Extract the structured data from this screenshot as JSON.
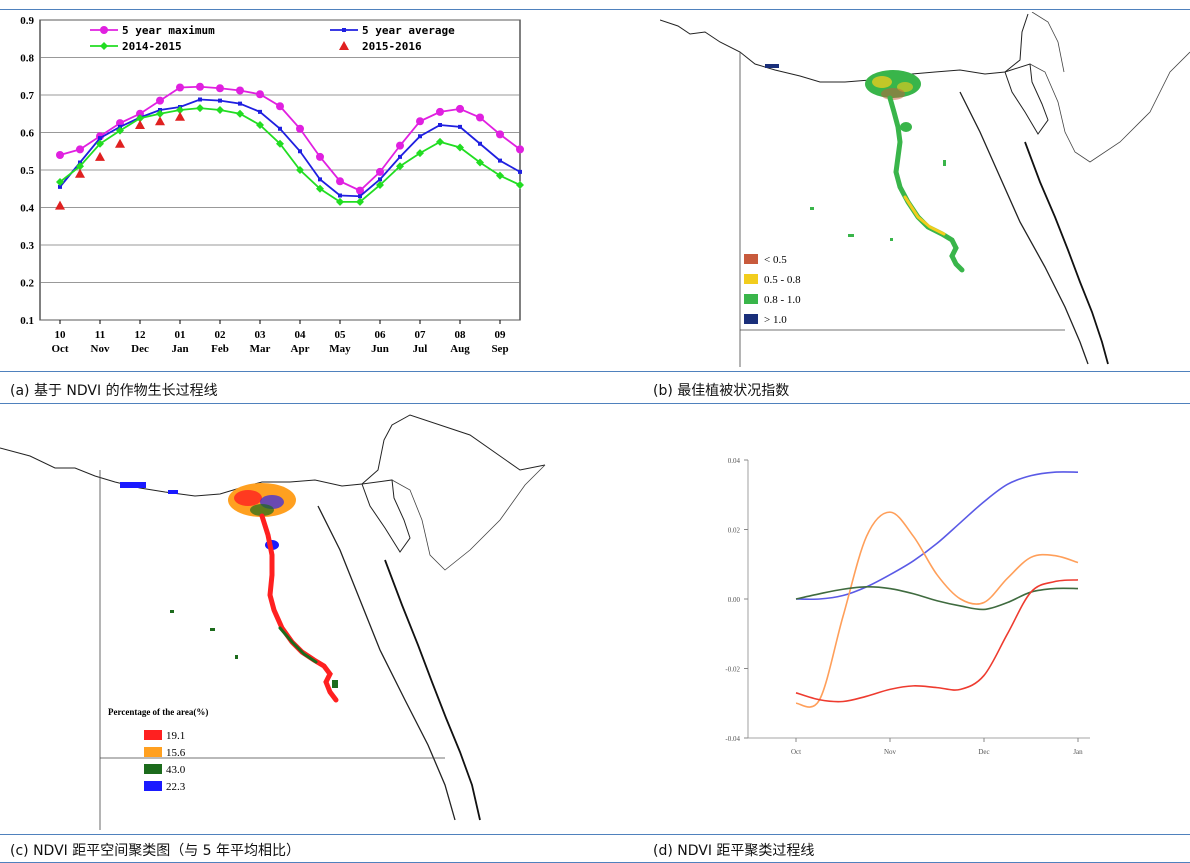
{
  "captions": {
    "a": "(a)  基于 NDVI 的作物生长过程线",
    "b": "(b)  最佳植被状况指数",
    "c": "(c) NDVI 距平空间聚类图（与 5 年平均相比）",
    "d": "(d) NDVI 距平聚类过程线"
  },
  "colors": {
    "rule": "#4f81bd",
    "max": "#e020e0",
    "avg": "#1f1fe0",
    "y1415": "#22dd22",
    "y1516": "#e02020"
  },
  "chart_data": [
    {
      "type": "line",
      "id": "a",
      "categories": [
        "10",
        "11",
        "12",
        "01",
        "02",
        "03",
        "04",
        "05",
        "06",
        "07",
        "08",
        "09"
      ],
      "category_months": [
        "Oct",
        "Nov",
        "Dec",
        "Jan",
        "Feb",
        "Mar",
        "Apr",
        "May",
        "Jun",
        "Jul",
        "Aug",
        "Sep"
      ],
      "x": [
        0,
        0.5,
        1,
        1.5,
        2,
        2.5,
        3,
        3.5,
        4,
        4.5,
        5,
        5.5,
        6,
        6.5,
        7,
        7.5,
        8,
        8.5,
        9,
        9.5,
        10,
        10.5,
        11,
        11.5
      ],
      "ylim": [
        0.1,
        0.9
      ],
      "yticks": [
        "0.1",
        "0.2",
        "0.3",
        "0.4",
        "0.5",
        "0.6",
        "0.7",
        "0.8",
        "0.9"
      ],
      "grid": true,
      "series": [
        {
          "name": "5 year maximum",
          "key": "max",
          "values": [
            0.54,
            0.555,
            0.59,
            0.625,
            0.65,
            0.685,
            0.72,
            0.722,
            0.718,
            0.712,
            0.702,
            0.67,
            0.61,
            0.535,
            0.47,
            0.445,
            0.495,
            0.565,
            0.63,
            0.655,
            0.663,
            0.64,
            0.595,
            0.555
          ]
        },
        {
          "name": "5 year average",
          "key": "avg",
          "values": [
            0.455,
            0.52,
            0.585,
            0.615,
            0.64,
            0.66,
            0.668,
            0.688,
            0.685,
            0.677,
            0.655,
            0.61,
            0.55,
            0.475,
            0.432,
            0.43,
            0.475,
            0.535,
            0.59,
            0.62,
            0.615,
            0.57,
            0.525,
            0.495
          ]
        },
        {
          "name": "2014-2015",
          "key": "y1415",
          "values": [
            0.468,
            0.51,
            0.57,
            0.605,
            0.638,
            0.65,
            0.66,
            0.665,
            0.66,
            0.65,
            0.62,
            0.57,
            0.5,
            0.45,
            0.415,
            0.415,
            0.46,
            0.51,
            0.545,
            0.575,
            0.56,
            0.52,
            0.485,
            0.46
          ]
        },
        {
          "name": "2015-2016",
          "key": "y1516",
          "marker": "triangle",
          "x": [
            0,
            0.5,
            1,
            1.5,
            2,
            2.5,
            3
          ],
          "values": [
            0.405,
            0.49,
            0.535,
            0.57,
            0.62,
            0.63,
            0.642
          ]
        }
      ],
      "legend": "top"
    },
    {
      "type": "map",
      "id": "b",
      "legend": [
        {
          "label": "< 0.5",
          "color": "#c85a3c"
        },
        {
          "label": "0.5 - 0.8",
          "color": "#f2cd1d"
        },
        {
          "label": "0.8 - 1.0",
          "color": "#39b54a"
        },
        {
          "label": "> 1.0",
          "color": "#1a2f7a"
        }
      ]
    },
    {
      "type": "map",
      "id": "c",
      "legend_title": "Percentage of the area(%)",
      "legend": [
        {
          "label": "19.1",
          "color": "#ff2020"
        },
        {
          "label": "15.6",
          "color": "#ffa020"
        },
        {
          "label": "43.0",
          "color": "#1c6b1c"
        },
        {
          "label": "22.3",
          "color": "#1a1aff"
        }
      ]
    },
    {
      "type": "line",
      "id": "d",
      "categories": [
        "Oct",
        "Nov",
        "Dec",
        "Jan"
      ],
      "ylim": [
        -0.04,
        0.04
      ],
      "yticks": [
        "-0.04",
        "-0.02",
        "0.00",
        "0.02",
        "0.04"
      ],
      "x": [
        0,
        0.25,
        0.5,
        0.75,
        1,
        1.25,
        1.5,
        1.75,
        2,
        2.25,
        2.5,
        2.75,
        3
      ],
      "series": [
        {
          "key": "blue",
          "color": "#5a5ae6",
          "values": [
            0.0,
            0.0,
            0.001,
            0.0035,
            0.007,
            0.011,
            0.016,
            0.022,
            0.028,
            0.033,
            0.0355,
            0.0365,
            0.0365
          ]
        },
        {
          "key": "orange",
          "color": "#ff9f5a",
          "values": [
            -0.03,
            -0.029,
            -0.005,
            0.018,
            0.025,
            0.018,
            0.007,
            0.0,
            -0.001,
            0.006,
            0.012,
            0.0125,
            0.0105
          ]
        },
        {
          "key": "green",
          "color": "#3f6b3f",
          "values": [
            0.0,
            0.0015,
            0.0028,
            0.0035,
            0.003,
            0.0015,
            -0.0005,
            -0.002,
            -0.003,
            -0.001,
            0.002,
            0.003,
            0.003
          ]
        },
        {
          "key": "red",
          "color": "#ee3b2f",
          "values": [
            -0.027,
            -0.029,
            -0.0295,
            -0.028,
            -0.026,
            -0.025,
            -0.0255,
            -0.026,
            -0.022,
            -0.01,
            0.002,
            0.005,
            0.0055
          ]
        }
      ]
    }
  ]
}
